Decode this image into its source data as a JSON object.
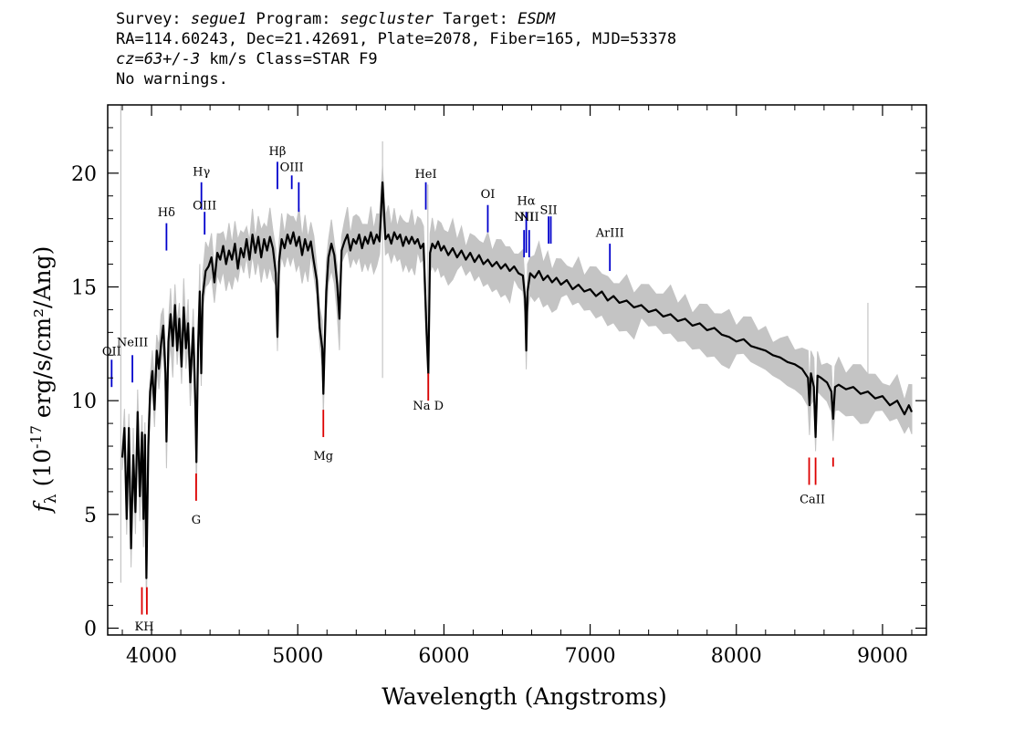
{
  "header": {
    "line1": {
      "survey_label": "Survey: ",
      "survey": "segue1",
      "program_label": " Program: ",
      "program": "segcluster",
      "target_label": " Target: ",
      "target": "ESDM"
    },
    "line2": "RA=114.60243, Dec=21.42691, Plate=2078, Fiber=165, MJD=53378",
    "line3": {
      "cz": "cz=63+/-3",
      "rest": " km/s Class=STAR F9"
    },
    "line4": "No warnings."
  },
  "chart_data": {
    "type": "line",
    "xlabel": "Wavelength (Angstroms)",
    "ylabel": "f_λ (10^-17 erg/s/cm²/Ang)",
    "xlim": [
      3700,
      9300
    ],
    "ylim": [
      -0.3,
      23
    ],
    "x_ticks": [
      4000,
      5000,
      6000,
      7000,
      8000,
      9000
    ],
    "y_ticks": [
      0,
      5,
      10,
      15,
      20
    ],
    "series": [
      {
        "role": "flux",
        "color": "#000000",
        "points": [
          [
            3800,
            7.5
          ],
          [
            3815,
            8.8
          ],
          [
            3830,
            4.8
          ],
          [
            3845,
            8.8
          ],
          [
            3860,
            3.5
          ],
          [
            3875,
            7.6
          ],
          [
            3890,
            5.1
          ],
          [
            3905,
            9.5
          ],
          [
            3920,
            5.8
          ],
          [
            3935,
            8.6
          ],
          [
            3945,
            4.8
          ],
          [
            3955,
            8.5
          ],
          [
            3965,
            2.2
          ],
          [
            3978,
            8.0
          ],
          [
            3990,
            10.4
          ],
          [
            4005,
            11.3
          ],
          [
            4020,
            9.6
          ],
          [
            4035,
            12.2
          ],
          [
            4050,
            11.4
          ],
          [
            4065,
            12.5
          ],
          [
            4080,
            13.3
          ],
          [
            4095,
            11.2
          ],
          [
            4102,
            8.2
          ],
          [
            4115,
            12.6
          ],
          [
            4130,
            13.8
          ],
          [
            4145,
            12.4
          ],
          [
            4160,
            14.2
          ],
          [
            4175,
            12.2
          ],
          [
            4190,
            13.6
          ],
          [
            4205,
            11.5
          ],
          [
            4220,
            14.1
          ],
          [
            4235,
            12.3
          ],
          [
            4250,
            13.4
          ],
          [
            4265,
            10.8
          ],
          [
            4285,
            13.2
          ],
          [
            4300,
            9.8
          ],
          [
            4307,
            7.3
          ],
          [
            4318,
            12.3
          ],
          [
            4330,
            14.8
          ],
          [
            4340,
            11.2
          ],
          [
            4350,
            14.6
          ],
          [
            4370,
            15.7
          ],
          [
            4390,
            15.9
          ],
          [
            4410,
            16.3
          ],
          [
            4430,
            15.2
          ],
          [
            4450,
            16.5
          ],
          [
            4470,
            16.2
          ],
          [
            4490,
            16.8
          ],
          [
            4510,
            16.0
          ],
          [
            4530,
            16.6
          ],
          [
            4550,
            16.2
          ],
          [
            4570,
            16.9
          ],
          [
            4590,
            15.8
          ],
          [
            4610,
            16.7
          ],
          [
            4630,
            16.3
          ],
          [
            4650,
            17.1
          ],
          [
            4670,
            16.2
          ],
          [
            4690,
            17.3
          ],
          [
            4710,
            16.5
          ],
          [
            4730,
            17.2
          ],
          [
            4750,
            16.3
          ],
          [
            4770,
            17.1
          ],
          [
            4790,
            16.6
          ],
          [
            4810,
            17.2
          ],
          [
            4830,
            16.7
          ],
          [
            4850,
            15.6
          ],
          [
            4861,
            12.8
          ],
          [
            4872,
            16.1
          ],
          [
            4890,
            17.1
          ],
          [
            4910,
            16.7
          ],
          [
            4930,
            17.3
          ],
          [
            4950,
            16.9
          ],
          [
            4970,
            17.4
          ],
          [
            4990,
            16.8
          ],
          [
            5010,
            17.2
          ],
          [
            5030,
            16.4
          ],
          [
            5050,
            17.1
          ],
          [
            5070,
            16.6
          ],
          [
            5090,
            17.0
          ],
          [
            5110,
            16.1
          ],
          [
            5130,
            15.3
          ],
          [
            5150,
            13.2
          ],
          [
            5168,
            12.3
          ],
          [
            5175,
            10.3
          ],
          [
            5183,
            12.2
          ],
          [
            5195,
            14.8
          ],
          [
            5210,
            16.3
          ],
          [
            5230,
            16.9
          ],
          [
            5250,
            16.4
          ],
          [
            5270,
            15.1
          ],
          [
            5285,
            13.6
          ],
          [
            5300,
            16.6
          ],
          [
            5320,
            17.0
          ],
          [
            5340,
            17.3
          ],
          [
            5360,
            16.6
          ],
          [
            5380,
            17.1
          ],
          [
            5400,
            16.9
          ],
          [
            5420,
            17.3
          ],
          [
            5440,
            16.7
          ],
          [
            5460,
            17.2
          ],
          [
            5480,
            16.9
          ],
          [
            5500,
            17.4
          ],
          [
            5520,
            16.9
          ],
          [
            5540,
            17.3
          ],
          [
            5560,
            17.0
          ],
          [
            5580,
            19.6
          ],
          [
            5600,
            17.1
          ],
          [
            5620,
            17.3
          ],
          [
            5640,
            16.9
          ],
          [
            5660,
            17.4
          ],
          [
            5680,
            17.1
          ],
          [
            5700,
            17.3
          ],
          [
            5720,
            16.8
          ],
          [
            5740,
            17.2
          ],
          [
            5760,
            16.9
          ],
          [
            5780,
            17.2
          ],
          [
            5800,
            16.9
          ],
          [
            5820,
            17.1
          ],
          [
            5840,
            16.7
          ],
          [
            5860,
            16.9
          ],
          [
            5880,
            13.2
          ],
          [
            5893,
            11.2
          ],
          [
            5905,
            16.5
          ],
          [
            5920,
            16.9
          ],
          [
            5940,
            16.7
          ],
          [
            5960,
            17.0
          ],
          [
            5980,
            16.6
          ],
          [
            6000,
            16.8
          ],
          [
            6030,
            16.4
          ],
          [
            6060,
            16.7
          ],
          [
            6090,
            16.3
          ],
          [
            6120,
            16.6
          ],
          [
            6150,
            16.2
          ],
          [
            6180,
            16.5
          ],
          [
            6210,
            16.1
          ],
          [
            6240,
            16.4
          ],
          [
            6270,
            16.0
          ],
          [
            6300,
            16.2
          ],
          [
            6330,
            15.9
          ],
          [
            6360,
            16.1
          ],
          [
            6390,
            15.8
          ],
          [
            6420,
            16.0
          ],
          [
            6450,
            15.7
          ],
          [
            6480,
            15.9
          ],
          [
            6510,
            15.6
          ],
          [
            6540,
            15.5
          ],
          [
            6555,
            14.5
          ],
          [
            6563,
            12.2
          ],
          [
            6572,
            14.8
          ],
          [
            6590,
            15.6
          ],
          [
            6620,
            15.4
          ],
          [
            6650,
            15.7
          ],
          [
            6680,
            15.3
          ],
          [
            6710,
            15.5
          ],
          [
            6740,
            15.2
          ],
          [
            6770,
            15.4
          ],
          [
            6800,
            15.1
          ],
          [
            6840,
            15.3
          ],
          [
            6880,
            14.9
          ],
          [
            6920,
            15.1
          ],
          [
            6960,
            14.8
          ],
          [
            7000,
            14.9
          ],
          [
            7040,
            14.6
          ],
          [
            7080,
            14.8
          ],
          [
            7120,
            14.4
          ],
          [
            7160,
            14.6
          ],
          [
            7200,
            14.3
          ],
          [
            7250,
            14.4
          ],
          [
            7300,
            14.1
          ],
          [
            7350,
            14.2
          ],
          [
            7400,
            13.9
          ],
          [
            7450,
            14.0
          ],
          [
            7500,
            13.7
          ],
          [
            7550,
            13.8
          ],
          [
            7600,
            13.5
          ],
          [
            7650,
            13.6
          ],
          [
            7700,
            13.3
          ],
          [
            7750,
            13.4
          ],
          [
            7800,
            13.1
          ],
          [
            7850,
            13.2
          ],
          [
            7900,
            12.9
          ],
          [
            7950,
            12.8
          ],
          [
            8000,
            12.6
          ],
          [
            8050,
            12.7
          ],
          [
            8100,
            12.4
          ],
          [
            8150,
            12.3
          ],
          [
            8200,
            12.2
          ],
          [
            8250,
            12.0
          ],
          [
            8300,
            11.9
          ],
          [
            8350,
            11.7
          ],
          [
            8400,
            11.6
          ],
          [
            8450,
            11.4
          ],
          [
            8490,
            11.0
          ],
          [
            8500,
            9.8
          ],
          [
            8510,
            11.2
          ],
          [
            8530,
            10.6
          ],
          [
            8542,
            8.4
          ],
          [
            8555,
            11.1
          ],
          [
            8580,
            11.0
          ],
          [
            8620,
            10.8
          ],
          [
            8650,
            10.4
          ],
          [
            8662,
            9.2
          ],
          [
            8675,
            10.6
          ],
          [
            8700,
            10.7
          ],
          [
            8750,
            10.5
          ],
          [
            8800,
            10.6
          ],
          [
            8850,
            10.3
          ],
          [
            8900,
            10.4
          ],
          [
            8950,
            10.1
          ],
          [
            9000,
            10.2
          ],
          [
            9050,
            9.8
          ],
          [
            9100,
            10.0
          ],
          [
            9150,
            9.4
          ],
          [
            9180,
            9.8
          ],
          [
            9200,
            9.5
          ]
        ]
      },
      {
        "role": "noise_band",
        "color": "#c4c4c4"
      }
    ],
    "emission_lines": [
      {
        "label": "OII",
        "display": "OII",
        "wavelength": 3727,
        "y_bottom": 10.6,
        "y_top": 11.8,
        "label_y": 12.0
      },
      {
        "label": "NeIII",
        "display": "NeIII",
        "wavelength": 3869,
        "y_bottom": 10.8,
        "y_top": 12.0,
        "label_y": 12.4
      },
      {
        "label": "Hδ",
        "display": "Hδ",
        "wavelength": 4102,
        "y_bottom": 16.6,
        "y_top": 17.8,
        "label_y": 18.1
      },
      {
        "label": "Hγ",
        "display": "Hγ",
        "wavelength": 4341,
        "y_bottom": 18.4,
        "y_top": 19.6,
        "label_y": 19.9
      },
      {
        "label": "OIII",
        "display": "OIII",
        "wavelength": 4363,
        "y_bottom": 17.3,
        "y_top": 18.3,
        "label_y": 18.4
      },
      {
        "label": "Hβ",
        "display": "Hβ",
        "wavelength": 4861,
        "y_bottom": 19.3,
        "y_top": 20.5,
        "label_y": 20.8
      },
      {
        "label": "OIII",
        "display": "OIII",
        "wavelength": 4959,
        "y_bottom": 19.3,
        "y_top": 19.9,
        "label_y": 20.1
      },
      {
        "label": "OIII",
        "display": "",
        "wavelength": 5007,
        "y_bottom": 18.3,
        "y_top": 19.6,
        "label_y": 0
      },
      {
        "label": "HeI",
        "display": "HeI",
        "wavelength": 5876,
        "y_bottom": 18.4,
        "y_top": 19.6,
        "label_y": 19.8
      },
      {
        "label": "OI",
        "display": "OI",
        "wavelength": 6300,
        "y_bottom": 17.4,
        "y_top": 18.6,
        "label_y": 18.9
      },
      {
        "label": "NII",
        "display": "NII",
        "wavelength": 6548,
        "y_bottom": 16.3,
        "y_top": 17.5,
        "label_y": 17.9
      },
      {
        "label": "Hα",
        "display": "Hα",
        "wavelength": 6563,
        "y_bottom": 16.5,
        "y_top": 18.3,
        "label_y": 18.6
      },
      {
        "label": "NII",
        "display": "NII",
        "wavelength": 6583,
        "y_bottom": 16.3,
        "y_top": 17.5,
        "label_y": 17.9
      },
      {
        "label": "SII",
        "display": "SII",
        "wavelength": 6716,
        "y_bottom": 16.9,
        "y_top": 18.1,
        "label_y": 18.2
      },
      {
        "label": "SII",
        "display": "",
        "wavelength": 6731,
        "y_bottom": 16.9,
        "y_top": 18.1,
        "label_y": 0
      },
      {
        "label": "ArIII",
        "display": "ArIII",
        "wavelength": 7135,
        "y_bottom": 15.7,
        "y_top": 16.9,
        "label_y": 17.2
      }
    ],
    "absorption_lines": [
      {
        "label": "K",
        "wavelength": 3934,
        "y_top": 1.8,
        "y_bottom": 0.6
      },
      {
        "label": "H",
        "wavelength": 3968,
        "y_top": 1.8,
        "y_bottom": 0.6
      },
      {
        "label": "G",
        "wavelength": 4305,
        "y_top": 6.8,
        "y_bottom": 5.6,
        "label_y": 4.6
      },
      {
        "label": "Mg",
        "wavelength": 5175,
        "y_top": 9.6,
        "y_bottom": 8.4,
        "label_y": 7.4
      },
      {
        "label": "Na D",
        "wavelength": 5893,
        "y_top": 11.2,
        "y_bottom": 10.0,
        "label_y": 9.6
      },
      {
        "label": "CaII",
        "wavelength": 8498,
        "y_top": 7.5,
        "y_bottom": 6.3
      },
      {
        "label": "CaII",
        "wavelength": 8542,
        "y_top": 7.5,
        "y_bottom": 6.3
      },
      {
        "label": "CaII",
        "wavelength": 8662,
        "y_top": 7.5,
        "y_bottom": 7.1
      }
    ],
    "absorption_group_labels": [
      {
        "text": "KH",
        "wavelength": 3950,
        "label_y": -0.1
      },
      {
        "text": "CaII",
        "wavelength": 8520,
        "label_y": 5.5
      }
    ],
    "emission_color": "#0000cc",
    "absorption_color": "#dd0000"
  }
}
